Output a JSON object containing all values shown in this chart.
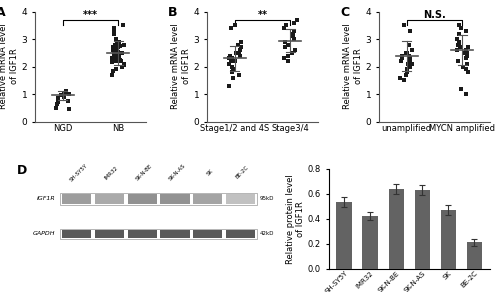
{
  "panel_A": {
    "label": "A",
    "groups": [
      "NGD",
      "NB"
    ],
    "ylabel": "Relative mRNA level\nof IGF1R",
    "ylim": [
      0,
      4
    ],
    "yticks": [
      0,
      1,
      2,
      3,
      4
    ],
    "significance": "***",
    "group1_points": [
      0.95,
      1.0,
      1.05,
      0.9,
      0.85,
      0.7,
      0.65,
      0.75,
      1.05,
      1.1,
      0.5,
      0.45
    ],
    "group1_mean": 0.95,
    "group1_sd": 0.15,
    "group2_points": [
      3.5,
      3.4,
      3.3,
      3.2,
      3.0,
      2.9,
      2.85,
      2.8,
      2.75,
      2.7,
      2.65,
      2.6,
      2.55,
      2.5,
      2.45,
      2.4,
      2.35,
      2.3,
      2.25,
      2.2,
      2.15,
      2.1,
      2.05,
      2.0,
      1.9,
      1.85,
      2.2,
      2.3,
      2.6,
      2.7,
      1.7,
      2.8,
      2.4,
      2.5,
      2.3,
      2.2
    ],
    "group2_mean": 2.5,
    "group2_sd": 0.45
  },
  "panel_B": {
    "label": "B",
    "groups": [
      "Stage1/2 and 4S",
      "Stage3/4"
    ],
    "ylabel": "Relative mRNA level\nof IGF1R",
    "ylim": [
      0,
      4
    ],
    "yticks": [
      0,
      1,
      2,
      3,
      4
    ],
    "significance": "**",
    "group1_points": [
      3.5,
      3.4,
      2.9,
      2.8,
      2.7,
      2.6,
      2.5,
      2.4,
      2.3,
      2.2,
      2.1,
      2.0,
      1.9,
      1.8,
      1.7,
      1.6,
      2.3,
      2.2,
      2.4,
      2.5,
      1.3
    ],
    "group1_mean": 2.3,
    "group1_sd": 0.45,
    "group2_points": [
      3.7,
      3.6,
      3.5,
      3.4,
      3.3,
      3.2,
      3.1,
      3.0,
      2.9,
      2.8,
      2.7,
      2.6,
      2.5,
      2.4,
      2.3,
      2.2
    ],
    "group2_mean": 2.95,
    "group2_sd": 0.42
  },
  "panel_C": {
    "label": "C",
    "groups": [
      "unamplified",
      "MYCN amplified"
    ],
    "ylabel": "Relative mRNA level\nof IGF1R",
    "ylim": [
      0,
      4
    ],
    "yticks": [
      0,
      1,
      2,
      3,
      4
    ],
    "significance": "N.S.",
    "group1_points": [
      3.5,
      3.3,
      2.8,
      2.6,
      2.5,
      2.4,
      2.3,
      2.2,
      2.1,
      2.0,
      1.9,
      1.8,
      1.7,
      1.6,
      2.3,
      2.2,
      2.4,
      1.5,
      2.5,
      2.1
    ],
    "group1_mean": 2.4,
    "group1_sd": 0.55,
    "group2_points": [
      3.5,
      3.4,
      3.3,
      3.2,
      3.0,
      2.9,
      2.8,
      2.7,
      2.6,
      2.5,
      2.4,
      2.3,
      2.2,
      2.1,
      2.0,
      1.9,
      1.8,
      2.7,
      2.6,
      2.8,
      1.2,
      1.0,
      2.5
    ],
    "group2_mean": 2.6,
    "group2_sd": 0.55
  },
  "panel_D_bar": {
    "label": "D",
    "categories": [
      "SH-SY5Y",
      "IMR32",
      "SK-N-BE",
      "SK-N-AS",
      "SK",
      "BE-2C"
    ],
    "values": [
      0.53,
      0.42,
      0.64,
      0.63,
      0.47,
      0.21
    ],
    "errors": [
      0.04,
      0.03,
      0.04,
      0.04,
      0.04,
      0.025
    ],
    "bar_color": "#636363",
    "ylabel": "Relative protein level\nof IGF1R",
    "ylim": [
      0,
      0.8
    ],
    "yticks": [
      0.0,
      0.2,
      0.4,
      0.6,
      0.8
    ]
  },
  "dot_color": "#1a1a1a",
  "dot_size": 12,
  "line_color": "#555555",
  "font_size": 6.5,
  "label_font_size": 9
}
